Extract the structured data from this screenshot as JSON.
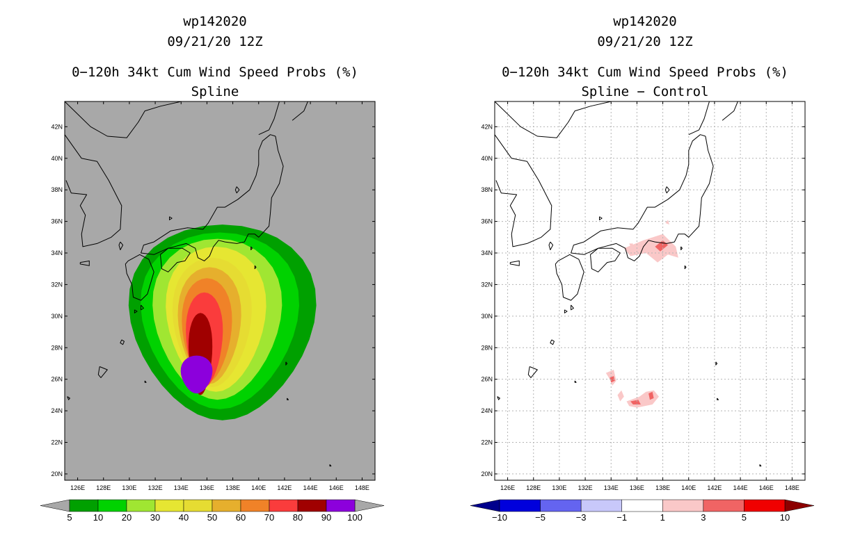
{
  "chart_data": [
    {
      "type": "heatmap",
      "title_lines": [
        "wp142020",
        "09/21/20 12Z",
        "0−120h 34kt Cum Wind Speed Probs (%)",
        "Spline"
      ],
      "xlabel": "",
      "ylabel": "",
      "x_ticks": [
        "126E",
        "128E",
        "130E",
        "132E",
        "134E",
        "136E",
        "138E",
        "140E",
        "142E",
        "144E",
        "146E",
        "148E"
      ],
      "y_ticks": [
        "42N",
        "40N",
        "38N",
        "36N",
        "34N",
        "32N",
        "30N",
        "28N",
        "26N",
        "24N",
        "22N",
        "20N"
      ],
      "xlim": [
        125,
        149
      ],
      "ylim": [
        19.6,
        43.6
      ],
      "background": "#a8a8a8",
      "levels": [
        5,
        10,
        20,
        30,
        40,
        50,
        60,
        70,
        80,
        90,
        100
      ],
      "level_colors": [
        "#00a000",
        "#00d200",
        "#a0e632",
        "#e6e632",
        "#e6dc32",
        "#e6af2d",
        "#f08228",
        "#fa3c3c",
        "#a00000",
        "#8c00dc"
      ],
      "below_color": "#a8a8a8",
      "above_color": "#a8a8a8",
      "colorbar_labels": [
        "5",
        "10",
        "20",
        "30",
        "40",
        "50",
        "60",
        "70",
        "80",
        "90",
        "100"
      ],
      "contours": [
        {
          "level": 5,
          "center_lon": 137.2,
          "center_lat": 29.6,
          "half_width_deg": 7.1,
          "half_height_deg": 6.2
        },
        {
          "level": 10,
          "center_lon": 137.0,
          "center_lat": 29.7,
          "half_width_deg": 6.0,
          "half_height_deg": 5.6
        },
        {
          "level": 20,
          "center_lon": 136.8,
          "center_lat": 29.8,
          "half_width_deg": 4.9,
          "half_height_deg": 5.1
        },
        {
          "level": 30,
          "center_lon": 136.7,
          "center_lat": 29.8,
          "half_width_deg": 3.8,
          "half_height_deg": 4.6
        },
        {
          "level": 40,
          "center_lon": 136.4,
          "center_lat": 29.6,
          "half_width_deg": 3.0,
          "half_height_deg": 4.1
        },
        {
          "level": 50,
          "center_lon": 136.2,
          "center_lat": 29.4,
          "half_width_deg": 2.4,
          "half_height_deg": 3.7
        },
        {
          "level": 60,
          "center_lon": 136.0,
          "center_lat": 29.1,
          "half_width_deg": 1.9,
          "half_height_deg": 3.3
        },
        {
          "level": 70,
          "center_lon": 135.8,
          "center_lat": 28.5,
          "half_width_deg": 1.4,
          "half_height_deg": 3.0
        },
        {
          "level": 80,
          "center_lon": 135.5,
          "center_lat": 27.6,
          "half_width_deg": 0.9,
          "half_height_deg": 2.6
        },
        {
          "level": 90,
          "center_lon": 135.2,
          "center_lat": 26.3,
          "half_width_deg": 1.2,
          "half_height_deg": 1.2
        }
      ]
    },
    {
      "type": "heatmap",
      "title_lines": [
        "wp142020",
        "09/21/20 12Z",
        "0−120h 34kt Cum Wind Speed Probs (%)",
        "Spline − Control"
      ],
      "xlabel": "",
      "ylabel": "",
      "x_ticks": [
        "126E",
        "128E",
        "130E",
        "132E",
        "134E",
        "136E",
        "138E",
        "140E",
        "142E",
        "144E",
        "146E",
        "148E"
      ],
      "y_ticks": [
        "42N",
        "40N",
        "38N",
        "36N",
        "34N",
        "32N",
        "30N",
        "28N",
        "26N",
        "24N",
        "22N",
        "20N"
      ],
      "xlim": [
        125,
        149
      ],
      "ylim": [
        19.6,
        43.6
      ],
      "background": "#ffffff",
      "levels": [
        -10,
        -5,
        -3,
        -1,
        1,
        3,
        5,
        10
      ],
      "level_colors": [
        "#0000dc",
        "#6464f0",
        "#c8c8fa",
        "#ffffff",
        "#fac8c8",
        "#f06464",
        "#f00000"
      ],
      "below_color": "#00008c",
      "above_color": "#8c0000",
      "colorbar_labels": [
        "−10",
        "−5",
        "−3",
        "−1",
        "1",
        "3",
        "5",
        "10"
      ],
      "patches": [
        {
          "level": 1,
          "points": [
            [
              135.0,
              34.3
            ],
            [
              136.5,
              34.8
            ],
            [
              138.0,
              35.2
            ],
            [
              139.0,
              34.4
            ],
            [
              139.2,
              33.7
            ],
            [
              138.4,
              33.9
            ],
            [
              137.6,
              33.4
            ],
            [
              136.7,
              34.0
            ],
            [
              135.5,
              33.8
            ]
          ]
        },
        {
          "level": 3,
          "points": [
            [
              137.4,
              34.4
            ],
            [
              138.0,
              34.8
            ],
            [
              138.4,
              34.5
            ],
            [
              137.8,
              34.1
            ]
          ]
        },
        {
          "level": 1,
          "points": [
            [
              135.4,
              34.6
            ],
            [
              135.7,
              34.6
            ],
            [
              135.6,
              34.2
            ]
          ]
        },
        {
          "level": 1,
          "points": [
            [
              138.2,
              35.9
            ],
            [
              138.4,
              36.1
            ],
            [
              138.5,
              35.8
            ]
          ]
        },
        {
          "level": 1,
          "points": [
            [
              133.6,
              26.4
            ],
            [
              134.2,
              26.6
            ],
            [
              134.4,
              25.9
            ],
            [
              134.1,
              25.6
            ],
            [
              133.9,
              26.0
            ]
          ]
        },
        {
          "level": 3,
          "points": [
            [
              133.9,
              26.1
            ],
            [
              134.2,
              26.2
            ],
            [
              134.3,
              25.9
            ],
            [
              134.0,
              25.8
            ]
          ]
        },
        {
          "level": 1,
          "points": [
            [
              134.5,
              25.0
            ],
            [
              134.8,
              25.3
            ],
            [
              135.0,
              24.9
            ],
            [
              134.7,
              24.6
            ]
          ]
        },
        {
          "level": 1,
          "points": [
            [
              135.2,
              24.6
            ],
            [
              136.2,
              24.9
            ],
            [
              136.7,
              25.2
            ],
            [
              137.3,
              25.3
            ],
            [
              137.7,
              24.9
            ],
            [
              137.2,
              24.4
            ],
            [
              136.0,
              24.2
            ],
            [
              135.4,
              24.3
            ]
          ]
        },
        {
          "level": 3,
          "points": [
            [
              135.5,
              24.6
            ],
            [
              136.1,
              24.7
            ],
            [
              136.3,
              24.4
            ],
            [
              135.7,
              24.4
            ]
          ]
        },
        {
          "level": 3,
          "points": [
            [
              136.9,
              25.1
            ],
            [
              137.2,
              25.2
            ],
            [
              137.3,
              24.8
            ],
            [
              137.0,
              24.7
            ]
          ]
        }
      ]
    }
  ]
}
